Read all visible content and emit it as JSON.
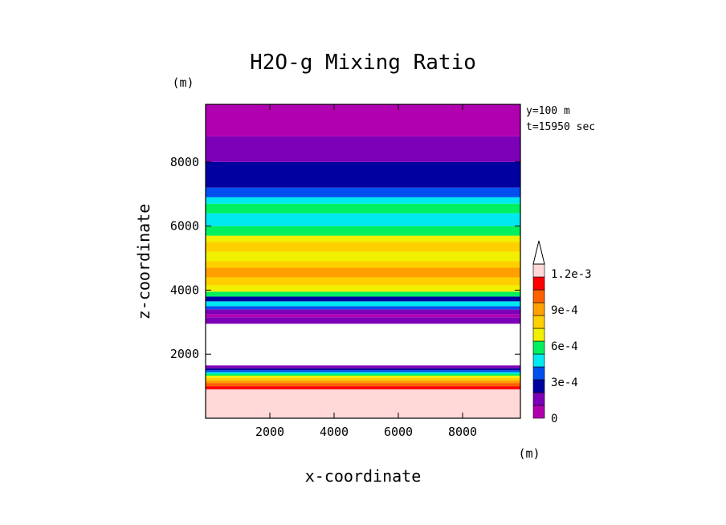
{
  "chart_data": {
    "type": "heatmap",
    "title": "H2O-g Mixing Ratio",
    "xlabel": "x-coordinate",
    "ylabel": "z-coordinate",
    "x_unit": "(m)",
    "y_unit": "(m)",
    "annotations": [
      "y=100 m",
      "t=15950 sec"
    ],
    "xlim": [
      0,
      9800
    ],
    "ylim": [
      0,
      9800
    ],
    "x_ticks": [
      2000,
      4000,
      6000,
      8000
    ],
    "y_ticks": [
      2000,
      4000,
      6000,
      8000
    ],
    "colorbar": {
      "levels": [
        0,
        0.00015,
        0.0003,
        0.00045,
        0.0006,
        0.00075,
        0.0009,
        0.00105,
        0.0012
      ],
      "tick_labels": [
        {
          "value": 0,
          "label": "0"
        },
        {
          "value": 0.0003,
          "label": "3e-4"
        },
        {
          "value": 0.0006,
          "label": "6e-4"
        },
        {
          "value": 0.0009,
          "label": "9e-4"
        },
        {
          "value": 0.0012,
          "label": "1.2e-3"
        }
      ],
      "colors": [
        "#b000b0",
        "#7c00b8",
        "#0000a0",
        "#0050f0",
        "#00e8f0",
        "#00f060",
        "#f0f000",
        "#ffd000",
        "#ffa000",
        "#ff6000",
        "#ff0000",
        "#ffd8d8"
      ],
      "extend": "max"
    },
    "bands": [
      {
        "z0": 0,
        "z1": 900,
        "color": "#ffd8d8"
      },
      {
        "z0": 900,
        "z1": 1000,
        "color": "#ff0000"
      },
      {
        "z0": 1000,
        "z1": 1100,
        "color": "#ff6000"
      },
      {
        "z0": 1100,
        "z1": 1180,
        "color": "#ffa000"
      },
      {
        "z0": 1180,
        "z1": 1260,
        "color": "#ffd000"
      },
      {
        "z0": 1260,
        "z1": 1330,
        "color": "#f0f000"
      },
      {
        "z0": 1330,
        "z1": 1390,
        "color": "#00f060"
      },
      {
        "z0": 1390,
        "z1": 1440,
        "color": "#00e8f0"
      },
      {
        "z0": 1440,
        "z1": 1500,
        "color": "#0050f0"
      },
      {
        "z0": 1500,
        "z1": 1560,
        "color": "#0000a0"
      },
      {
        "z0": 1560,
        "z1": 1650,
        "color": "#7c00b8"
      },
      {
        "z0": 1650,
        "z1": 2950,
        "color": "#ffffff"
      },
      {
        "z0": 2950,
        "z1": 3150,
        "color": "#7c00b8"
      },
      {
        "z0": 3150,
        "z1": 3250,
        "color": "#b000b0"
      },
      {
        "z0": 3250,
        "z1": 3400,
        "color": "#7c00b8"
      },
      {
        "z0": 3400,
        "z1": 3500,
        "color": "#0050f0"
      },
      {
        "z0": 3500,
        "z1": 3650,
        "color": "#00e8f0"
      },
      {
        "z0": 3650,
        "z1": 3800,
        "color": "#0000a0"
      },
      {
        "z0": 3800,
        "z1": 3950,
        "color": "#00f060"
      },
      {
        "z0": 3950,
        "z1": 4150,
        "color": "#f0f000"
      },
      {
        "z0": 4150,
        "z1": 4400,
        "color": "#ffd000"
      },
      {
        "z0": 4400,
        "z1": 4700,
        "color": "#ffa000"
      },
      {
        "z0": 4700,
        "z1": 4900,
        "color": "#ffd000"
      },
      {
        "z0": 4900,
        "z1": 5200,
        "color": "#f0f000"
      },
      {
        "z0": 5200,
        "z1": 5500,
        "color": "#ffd000"
      },
      {
        "z0": 5500,
        "z1": 5700,
        "color": "#f0f000"
      },
      {
        "z0": 5700,
        "z1": 6000,
        "color": "#00f060"
      },
      {
        "z0": 6000,
        "z1": 6400,
        "color": "#00e8f0"
      },
      {
        "z0": 6400,
        "z1": 6700,
        "color": "#00f060"
      },
      {
        "z0": 6700,
        "z1": 6900,
        "color": "#00e8f0"
      },
      {
        "z0": 6900,
        "z1": 7200,
        "color": "#0050f0"
      },
      {
        "z0": 7200,
        "z1": 8000,
        "color": "#0000a0"
      },
      {
        "z0": 8000,
        "z1": 8800,
        "color": "#7c00b8"
      },
      {
        "z0": 8800,
        "z1": 9800,
        "color": "#b000b0"
      }
    ]
  }
}
